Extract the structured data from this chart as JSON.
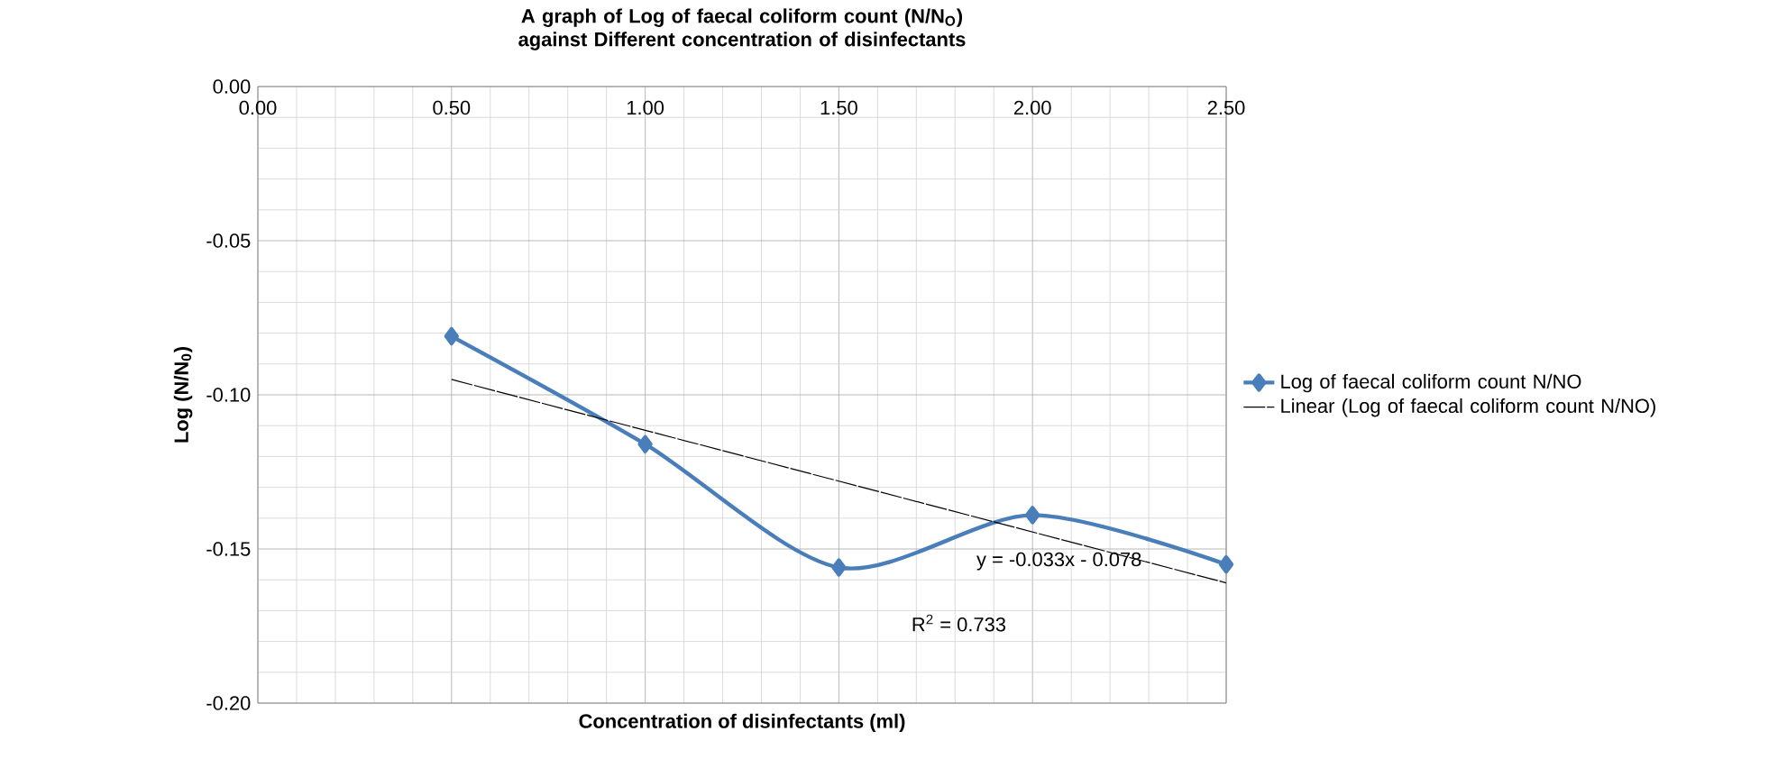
{
  "chart_data": {
    "type": "line",
    "title": "A graph of Log of faecal coliform count (N/N$_{O}$) against Different concentration of disinfectants",
    "xlabel": "Concentration of disinfectants (ml)",
    "ylabel": "Log (N/N$_{0}$)",
    "x": [
      0.5,
      1.0,
      1.5,
      2.0,
      2.5
    ],
    "series": [
      {
        "name": "Log of faecal coliform count N/NO",
        "color": "#4a7ebb",
        "values": [
          -0.081,
          -0.116,
          -0.156,
          -0.139,
          -0.155
        ],
        "marker": "diamond",
        "line_style": "solid"
      },
      {
        "name": "Linear (Log of faecal coliform count N/NO)",
        "color": "#000000",
        "type": "line",
        "x": [
          0.5,
          2.5
        ],
        "values": [
          -0.095,
          -0.161
        ],
        "marker": "none",
        "line_style": "dashed"
      }
    ],
    "annotations": [
      "y = -0.033x - 0.078",
      "R$^{2}$ = 0.733"
    ],
    "xlim": [
      0,
      2.5
    ],
    "xticks": [
      {
        "value": 0,
        "label": "0.00"
      },
      {
        "value": 0.5,
        "label": "0.50"
      },
      {
        "value": 1,
        "label": "1.00"
      },
      {
        "value": 1.5,
        "label": "1.50"
      },
      {
        "value": 2,
        "label": "2.00"
      },
      {
        "value": 2.5,
        "label": "2.50"
      }
    ],
    "ylim": [
      -0.2,
      0
    ],
    "yticks": [
      {
        "value": -0.2,
        "label": "-0.20"
      },
      {
        "value": -0.15,
        "label": "-0.15"
      },
      {
        "value": -0.1,
        "label": "-0.10"
      },
      {
        "value": -0.05,
        "label": "-0.05"
      },
      {
        "value": 0,
        "label": "0.00"
      }
    ],
    "grid": true,
    "legend": "right"
  }
}
